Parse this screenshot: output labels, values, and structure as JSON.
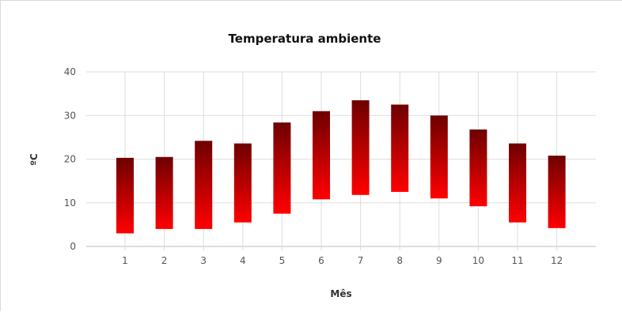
{
  "chart_data": {
    "type": "bar",
    "subtype": "range-column",
    "title": "Temperatura ambiente",
    "xlabel": "Mês",
    "ylabel": "ºC",
    "categories": [
      "1",
      "2",
      "3",
      "4",
      "5",
      "6",
      "7",
      "8",
      "9",
      "10",
      "11",
      "12"
    ],
    "series": [
      {
        "low": [
          3.0,
          4.0,
          4.0,
          5.5,
          7.5,
          10.8,
          11.8,
          12.5,
          11.0,
          9.2,
          5.5,
          4.2
        ],
        "high": [
          20.3,
          20.5,
          24.2,
          23.6,
          28.4,
          31.0,
          33.5,
          32.5,
          30.0,
          26.8,
          23.6,
          20.8
        ]
      }
    ],
    "ylim": [
      0,
      40
    ],
    "yticks": [
      0,
      10,
      20,
      30,
      40
    ],
    "grid": true,
    "legend": "none",
    "colors": {
      "bar_top": "#6e0000",
      "bar_bottom": "#ff0000",
      "grid": "#dddddd"
    }
  }
}
